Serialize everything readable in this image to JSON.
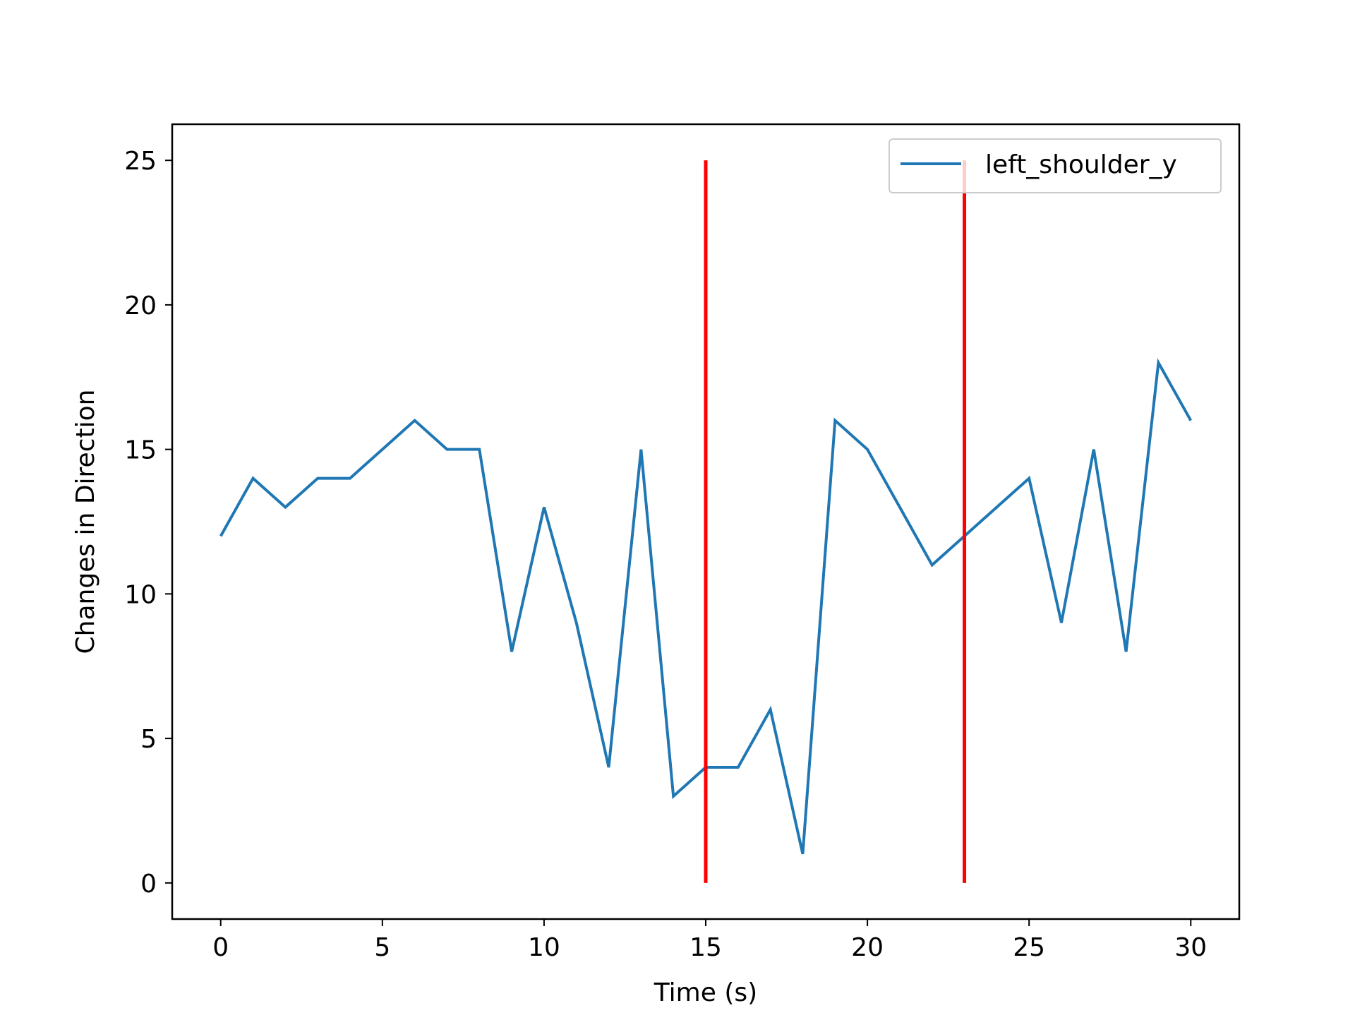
{
  "chart_data": {
    "type": "line",
    "title": "",
    "xlabel": "Time (s)",
    "ylabel": "Changes in Direction",
    "xlim": [
      -1.5,
      31.5
    ],
    "ylim": [
      -1.25,
      26.25
    ],
    "xticks": [
      0,
      5,
      10,
      15,
      20,
      25,
      30
    ],
    "yticks": [
      0,
      5,
      10,
      15,
      20,
      25
    ],
    "grid": false,
    "legend_position": "top-right",
    "series": [
      {
        "name": "left_shoulder_y",
        "color": "#1f77b4",
        "x": [
          0,
          1,
          2,
          3,
          4,
          5,
          6,
          7,
          8,
          9,
          10,
          11,
          12,
          13,
          14,
          15,
          16,
          17,
          18,
          19,
          20,
          21,
          22,
          23,
          24,
          25,
          26,
          27,
          28,
          29,
          30
        ],
        "y": [
          12,
          14,
          13,
          14,
          14,
          15,
          16,
          15,
          15,
          8,
          13,
          9,
          4,
          15,
          3,
          4,
          4,
          6,
          1,
          16,
          15,
          13,
          11,
          12,
          13,
          14,
          9,
          15,
          8,
          18,
          16
        ]
      }
    ],
    "vlines": [
      {
        "x": 15,
        "ymin": 0,
        "ymax": 25,
        "color": "#ff0000"
      },
      {
        "x": 23,
        "ymin": 0,
        "ymax": 25,
        "color": "#ff0000"
      }
    ]
  }
}
